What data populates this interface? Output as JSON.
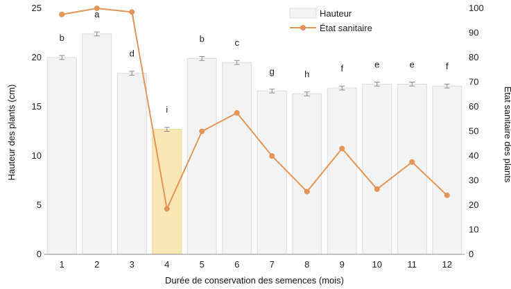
{
  "chart_data": {
    "type": "bar",
    "xlabel": "Durée de conservation des semences (mois)",
    "ylabel": "Hauteur des plants (cm)",
    "y2label": "État sanitaire des plants",
    "categories": [
      "1",
      "2",
      "3",
      "4",
      "5",
      "6",
      "7",
      "8",
      "9",
      "10",
      "11",
      "12"
    ],
    "ylim": [
      0,
      25
    ],
    "y2lim": [
      0,
      100
    ],
    "yticks": [
      "0",
      "5",
      "10",
      "15",
      "20",
      "25"
    ],
    "y2ticks": [
      "0",
      "10",
      "20",
      "30",
      "40",
      "50",
      "60",
      "70",
      "80",
      "90",
      "100"
    ],
    "series": [
      {
        "name": "Hauteur",
        "type": "bar",
        "axis": "left",
        "values": [
          20.0,
          22.4,
          18.4,
          12.7,
          19.9,
          19.5,
          16.6,
          16.3,
          16.9,
          17.3,
          17.3,
          17.1
        ],
        "errors": [
          0.2,
          0.2,
          0.2,
          0.2,
          0.2,
          0.2,
          0.2,
          0.2,
          0.2,
          0.2,
          0.2,
          0.2
        ],
        "letters": [
          "b",
          "a",
          "d",
          "i",
          "b",
          "c",
          "g",
          "h",
          "f",
          "e",
          "e",
          "f"
        ],
        "color": "#f3f3f3",
        "highlight_index": 3,
        "highlight_color": "#fbe6b5"
      },
      {
        "name": "État sanitaire",
        "type": "line",
        "axis": "right",
        "values": [
          97.5,
          100,
          98.5,
          18.5,
          50,
          57.5,
          40,
          25.5,
          43,
          26.5,
          37.5,
          24
        ],
        "color": "#e39559"
      }
    ],
    "legend": {
      "position": "top-right"
    },
    "grid": false
  }
}
